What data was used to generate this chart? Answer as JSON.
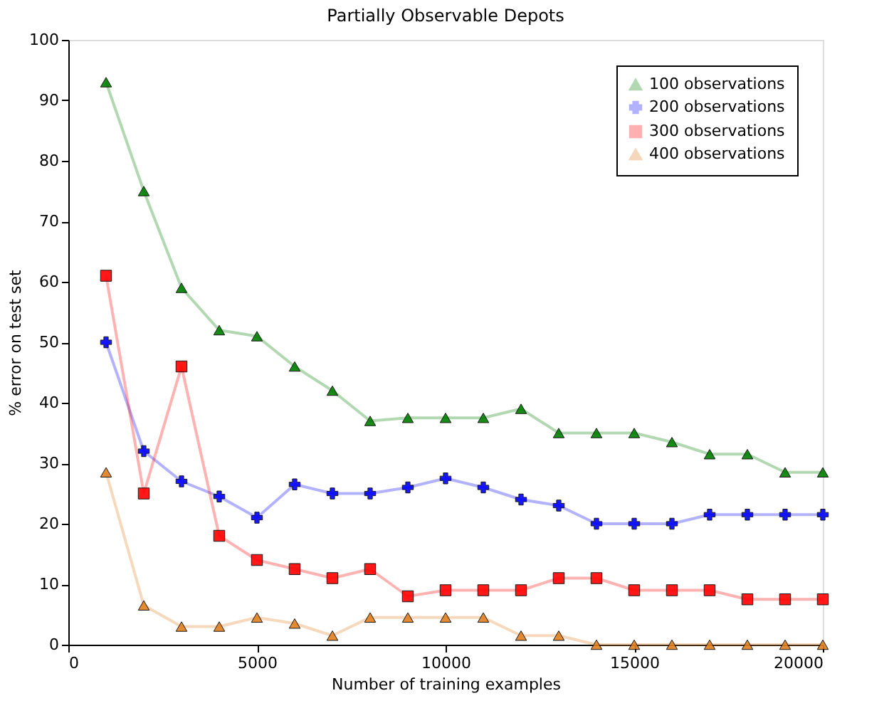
{
  "chart_data": {
    "type": "line",
    "title": "Partially Observable Depots",
    "xlabel": "Number of training examples",
    "ylabel": "% error on test set",
    "x": [
      1000,
      2000,
      3000,
      4000,
      5000,
      6000,
      7000,
      8000,
      9000,
      10000,
      11000,
      12000,
      13000,
      14000,
      15000,
      16000,
      17000,
      18000,
      19000,
      20000
    ],
    "series": [
      {
        "name": "100 observations",
        "color": "#007f00",
        "marker": "triangle",
        "values": [
          93,
          75,
          59,
          52,
          51,
          46,
          42,
          37,
          37.5,
          37.5,
          37.5,
          39,
          35,
          35,
          35,
          33.5,
          31.5,
          31.5,
          28.5,
          28.5
        ]
      },
      {
        "name": "200 observations",
        "color": "#0000ff",
        "marker": "cross",
        "values": [
          50,
          32,
          27,
          24.5,
          21,
          26.5,
          25,
          25,
          26,
          27.5,
          26,
          24,
          23,
          20,
          20,
          20,
          21.5,
          21.5,
          21.5,
          21.5
        ]
      },
      {
        "name": "300 observations",
        "color": "#ff0000",
        "marker": "square",
        "values": [
          61,
          25,
          46,
          18,
          14,
          12.5,
          11,
          12.5,
          8,
          9,
          9,
          9,
          11,
          11,
          9,
          9,
          9,
          7.5,
          7.5,
          7.5
        ]
      },
      {
        "name": "400 observations",
        "color": "#e08020",
        "marker": "triangle",
        "values": [
          28.5,
          6.5,
          3,
          3,
          4.5,
          3.5,
          1.5,
          4.5,
          4.5,
          4.5,
          4.5,
          1.5,
          1.5,
          0,
          0,
          0,
          0,
          0,
          0,
          0
        ]
      }
    ],
    "xlim": [
      0,
      20000
    ],
    "xticks": [
      0,
      5000,
      10000,
      15000,
      20000
    ],
    "ylim": [
      0,
      100
    ],
    "yticks": [
      0,
      10,
      20,
      30,
      40,
      50,
      60,
      70,
      80,
      90,
      100
    ],
    "grid": false,
    "legend": "top right",
    "line_style": "solid"
  }
}
